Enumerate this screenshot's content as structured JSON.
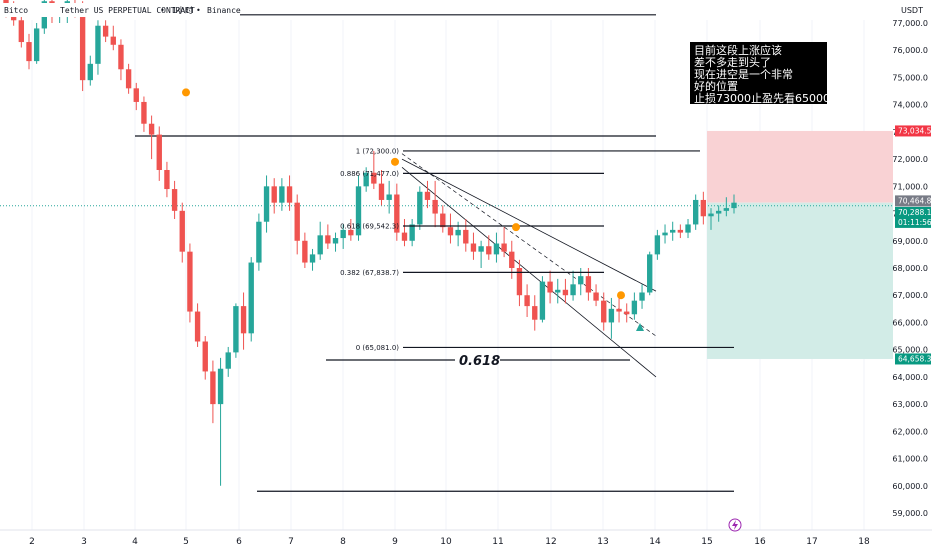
{
  "header": {
    "symbol_left": "Bitco",
    "symbol_right": "Tether US PERPETUAL CONTRACT",
    "interval": "1小时",
    "exchange": "Binance",
    "sep1": "•",
    "sep2": "•"
  },
  "currency": "USDT",
  "colors": {
    "up": "#26a69a",
    "down": "#ef5350",
    "price_line": "#26a69a",
    "stop_zone": "#f9d2d4",
    "target_zone": "#d2ece7",
    "stop_tag": "#f23645",
    "target_tag": "#089981",
    "current_tag": "#787b86"
  },
  "annotation": {
    "lines": [
      "目前这段上涨应该",
      "差不多走到头了",
      "现在进空是一个非常",
      "好的位置",
      "止损73000止盈先看65000"
    ]
  },
  "price_tags": {
    "stop": "73,034.5",
    "current_price": "70,464.8",
    "current_sub1": "70,288.1",
    "countdown": "01:11:56",
    "target": "64,658.3"
  },
  "fib_label": "0.618",
  "chart_data": {
    "type": "candlestick",
    "ylim": [
      58500,
      78000
    ],
    "y_ticks": [
      59000,
      60000,
      61000,
      62000,
      63000,
      64000,
      65000,
      66000,
      67000,
      68000,
      69000,
      70000,
      71000,
      72000,
      73000,
      74000,
      75000,
      76000,
      77000
    ],
    "y_tick_labels": [
      "59,000.0",
      "60,000.0",
      "61,000.0",
      "62,000.0",
      "63,000.0",
      "64,000.0",
      "65,000.0",
      "66,000.0",
      "67,000.0",
      "68,000.0",
      "69,000.0",
      "70,000.0",
      "71,000.0",
      "72,000.0",
      "73,000.0",
      "74,000.0",
      "75,000.0",
      "76,000.0",
      "77,000.0"
    ],
    "x_ticks": [
      "2",
      "3",
      "4",
      "5",
      "6",
      "7",
      "8",
      "9",
      "10",
      "11",
      "12",
      "13",
      "14",
      "15",
      "16",
      "17",
      "18"
    ],
    "fib_levels": [
      {
        "label": "1 (72,300.0)",
        "price": 72300
      },
      {
        "label": "0.886 (71,477.0)",
        "price": 71477
      },
      {
        "label": "0.618 (69,542.3)",
        "price": 69542.3
      },
      {
        "label": "0.382 (67,838.7)",
        "price": 67838.7
      },
      {
        "label": "0 (65,081.0)",
        "price": 65081
      }
    ],
    "horizontal_levels": [
      77300,
      72850,
      65081,
      64620,
      59800
    ],
    "position": {
      "entry": 70400,
      "stop": 73034.5,
      "target": 64658.3
    },
    "candles": [
      {
        "o": 77900,
        "h": 78200,
        "l": 77200,
        "c": 77400
      },
      {
        "o": 77400,
        "h": 77800,
        "l": 76900,
        "c": 77100
      },
      {
        "o": 77100,
        "h": 77400,
        "l": 76100,
        "c": 76300
      },
      {
        "o": 76300,
        "h": 76600,
        "l": 75300,
        "c": 75600
      },
      {
        "o": 75600,
        "h": 77000,
        "l": 75500,
        "c": 76800
      },
      {
        "o": 76800,
        "h": 78000,
        "l": 76600,
        "c": 77800
      },
      {
        "o": 77800,
        "h": 78000,
        "l": 77000,
        "c": 77300
      },
      {
        "o": 77300,
        "h": 77700,
        "l": 77000,
        "c": 77500
      },
      {
        "o": 77500,
        "h": 78000,
        "l": 77000,
        "c": 77800
      },
      {
        "o": 77700,
        "h": 78000,
        "l": 77200,
        "c": 77500
      },
      {
        "o": 77500,
        "h": 77800,
        "l": 74500,
        "c": 74900
      },
      {
        "o": 74900,
        "h": 75800,
        "l": 74700,
        "c": 75500
      },
      {
        "o": 75500,
        "h": 77100,
        "l": 75100,
        "c": 76900
      },
      {
        "o": 76900,
        "h": 77100,
        "l": 76300,
        "c": 76500
      },
      {
        "o": 76500,
        "h": 76900,
        "l": 76000,
        "c": 76200
      },
      {
        "o": 76200,
        "h": 76400,
        "l": 74900,
        "c": 75300
      },
      {
        "o": 75300,
        "h": 75500,
        "l": 74400,
        "c": 74600
      },
      {
        "o": 74600,
        "h": 74800,
        "l": 73800,
        "c": 74100
      },
      {
        "o": 74100,
        "h": 74300,
        "l": 73000,
        "c": 73300
      },
      {
        "o": 73300,
        "h": 73600,
        "l": 72000,
        "c": 72900
      },
      {
        "o": 72900,
        "h": 73200,
        "l": 71200,
        "c": 71600
      },
      {
        "o": 71600,
        "h": 71900,
        "l": 70600,
        "c": 70900
      },
      {
        "o": 70900,
        "h": 71200,
        "l": 69800,
        "c": 70100
      },
      {
        "o": 70100,
        "h": 70400,
        "l": 68200,
        "c": 68600
      },
      {
        "o": 68600,
        "h": 68900,
        "l": 66000,
        "c": 66400
      },
      {
        "o": 66400,
        "h": 66700,
        "l": 65100,
        "c": 65300
      },
      {
        "o": 65300,
        "h": 65500,
        "l": 63900,
        "c": 64200
      },
      {
        "o": 64200,
        "h": 64600,
        "l": 62300,
        "c": 63000
      },
      {
        "o": 63000,
        "h": 64700,
        "l": 60000,
        "c": 64300
      },
      {
        "o": 64300,
        "h": 65100,
        "l": 64000,
        "c": 64900
      },
      {
        "o": 64900,
        "h": 66700,
        "l": 64700,
        "c": 66600
      },
      {
        "o": 66600,
        "h": 67100,
        "l": 65000,
        "c": 65600
      },
      {
        "o": 65600,
        "h": 68400,
        "l": 65300,
        "c": 68200
      },
      {
        "o": 68200,
        "h": 70000,
        "l": 67900,
        "c": 69700
      },
      {
        "o": 69700,
        "h": 71400,
        "l": 69300,
        "c": 71000
      },
      {
        "o": 71000,
        "h": 71300,
        "l": 70000,
        "c": 70400
      },
      {
        "o": 70400,
        "h": 71300,
        "l": 70100,
        "c": 71000
      },
      {
        "o": 71000,
        "h": 71400,
        "l": 70100,
        "c": 70400
      },
      {
        "o": 70400,
        "h": 70700,
        "l": 68500,
        "c": 69000
      },
      {
        "o": 69000,
        "h": 69300,
        "l": 68000,
        "c": 68200
      },
      {
        "o": 68200,
        "h": 68700,
        "l": 67900,
        "c": 68500
      },
      {
        "o": 68500,
        "h": 69700,
        "l": 68300,
        "c": 69200
      },
      {
        "o": 69200,
        "h": 69600,
        "l": 68700,
        "c": 68900
      },
      {
        "o": 68900,
        "h": 69300,
        "l": 68600,
        "c": 69100
      },
      {
        "o": 69100,
        "h": 69600,
        "l": 68700,
        "c": 69400
      },
      {
        "o": 69400,
        "h": 69800,
        "l": 69000,
        "c": 69200
      },
      {
        "o": 69200,
        "h": 71400,
        "l": 69000,
        "c": 71000
      },
      {
        "o": 71000,
        "h": 71700,
        "l": 70800,
        "c": 71500
      },
      {
        "o": 71500,
        "h": 72300,
        "l": 70900,
        "c": 71100
      },
      {
        "o": 71100,
        "h": 71600,
        "l": 70300,
        "c": 70500
      },
      {
        "o": 70500,
        "h": 71200,
        "l": 70000,
        "c": 70700
      },
      {
        "o": 70700,
        "h": 71100,
        "l": 69000,
        "c": 69300
      },
      {
        "o": 69300,
        "h": 69800,
        "l": 68800,
        "c": 69000
      },
      {
        "o": 69000,
        "h": 69800,
        "l": 68800,
        "c": 69600
      },
      {
        "o": 69600,
        "h": 71000,
        "l": 69400,
        "c": 70800
      },
      {
        "o": 70800,
        "h": 71200,
        "l": 70200,
        "c": 70500
      },
      {
        "o": 70500,
        "h": 71200,
        "l": 69500,
        "c": 70000
      },
      {
        "o": 70000,
        "h": 70300,
        "l": 69300,
        "c": 69500
      },
      {
        "o": 69500,
        "h": 70000,
        "l": 68900,
        "c": 69200
      },
      {
        "o": 69200,
        "h": 69700,
        "l": 68800,
        "c": 69400
      },
      {
        "o": 69400,
        "h": 69800,
        "l": 68600,
        "c": 68900
      },
      {
        "o": 68900,
        "h": 69300,
        "l": 68300,
        "c": 68600
      },
      {
        "o": 68600,
        "h": 69000,
        "l": 68000,
        "c": 68800
      },
      {
        "o": 68800,
        "h": 69200,
        "l": 68300,
        "c": 68500
      },
      {
        "o": 68500,
        "h": 69300,
        "l": 68200,
        "c": 68900
      },
      {
        "o": 68900,
        "h": 69500,
        "l": 68400,
        "c": 68600
      },
      {
        "o": 68600,
        "h": 69000,
        "l": 67600,
        "c": 68000
      },
      {
        "o": 68000,
        "h": 68300,
        "l": 66600,
        "c": 67000
      },
      {
        "o": 67000,
        "h": 67400,
        "l": 66200,
        "c": 66600
      },
      {
        "o": 66600,
        "h": 67000,
        "l": 65700,
        "c": 66100
      },
      {
        "o": 66100,
        "h": 67700,
        "l": 66000,
        "c": 67500
      },
      {
        "o": 67500,
        "h": 67900,
        "l": 66700,
        "c": 67100
      },
      {
        "o": 67100,
        "h": 67600,
        "l": 66700,
        "c": 67200
      },
      {
        "o": 67200,
        "h": 67600,
        "l": 66700,
        "c": 67000
      },
      {
        "o": 67000,
        "h": 67900,
        "l": 66800,
        "c": 67400
      },
      {
        "o": 67400,
        "h": 68000,
        "l": 67000,
        "c": 67700
      },
      {
        "o": 67700,
        "h": 68000,
        "l": 66800,
        "c": 67100
      },
      {
        "o": 67100,
        "h": 67400,
        "l": 66600,
        "c": 66800
      },
      {
        "o": 66800,
        "h": 67100,
        "l": 65700,
        "c": 66000
      },
      {
        "o": 66000,
        "h": 66900,
        "l": 65400,
        "c": 66500
      },
      {
        "o": 66500,
        "h": 67100,
        "l": 66000,
        "c": 66400
      },
      {
        "o": 66400,
        "h": 66700,
        "l": 66000,
        "c": 66300
      },
      {
        "o": 66300,
        "h": 67100,
        "l": 66100,
        "c": 66800
      },
      {
        "o": 66800,
        "h": 67400,
        "l": 66500,
        "c": 67100
      },
      {
        "o": 67100,
        "h": 68600,
        "l": 67000,
        "c": 68500
      },
      {
        "o": 68500,
        "h": 69400,
        "l": 68300,
        "c": 69200
      },
      {
        "o": 69200,
        "h": 69600,
        "l": 68900,
        "c": 69300
      },
      {
        "o": 69300,
        "h": 69700,
        "l": 69000,
        "c": 69400
      },
      {
        "o": 69400,
        "h": 69600,
        "l": 69100,
        "c": 69300
      },
      {
        "o": 69300,
        "h": 69800,
        "l": 69100,
        "c": 69600
      },
      {
        "o": 69600,
        "h": 70700,
        "l": 69400,
        "c": 70500
      },
      {
        "o": 70500,
        "h": 70800,
        "l": 69600,
        "c": 69900
      },
      {
        "o": 69900,
        "h": 70200,
        "l": 69400,
        "c": 70000
      },
      {
        "o": 70000,
        "h": 70300,
        "l": 69700,
        "c": 70100
      },
      {
        "o": 70100,
        "h": 70600,
        "l": 69900,
        "c": 70200
      },
      {
        "o": 70200,
        "h": 70700,
        "l": 70000,
        "c": 70400
      }
    ]
  }
}
